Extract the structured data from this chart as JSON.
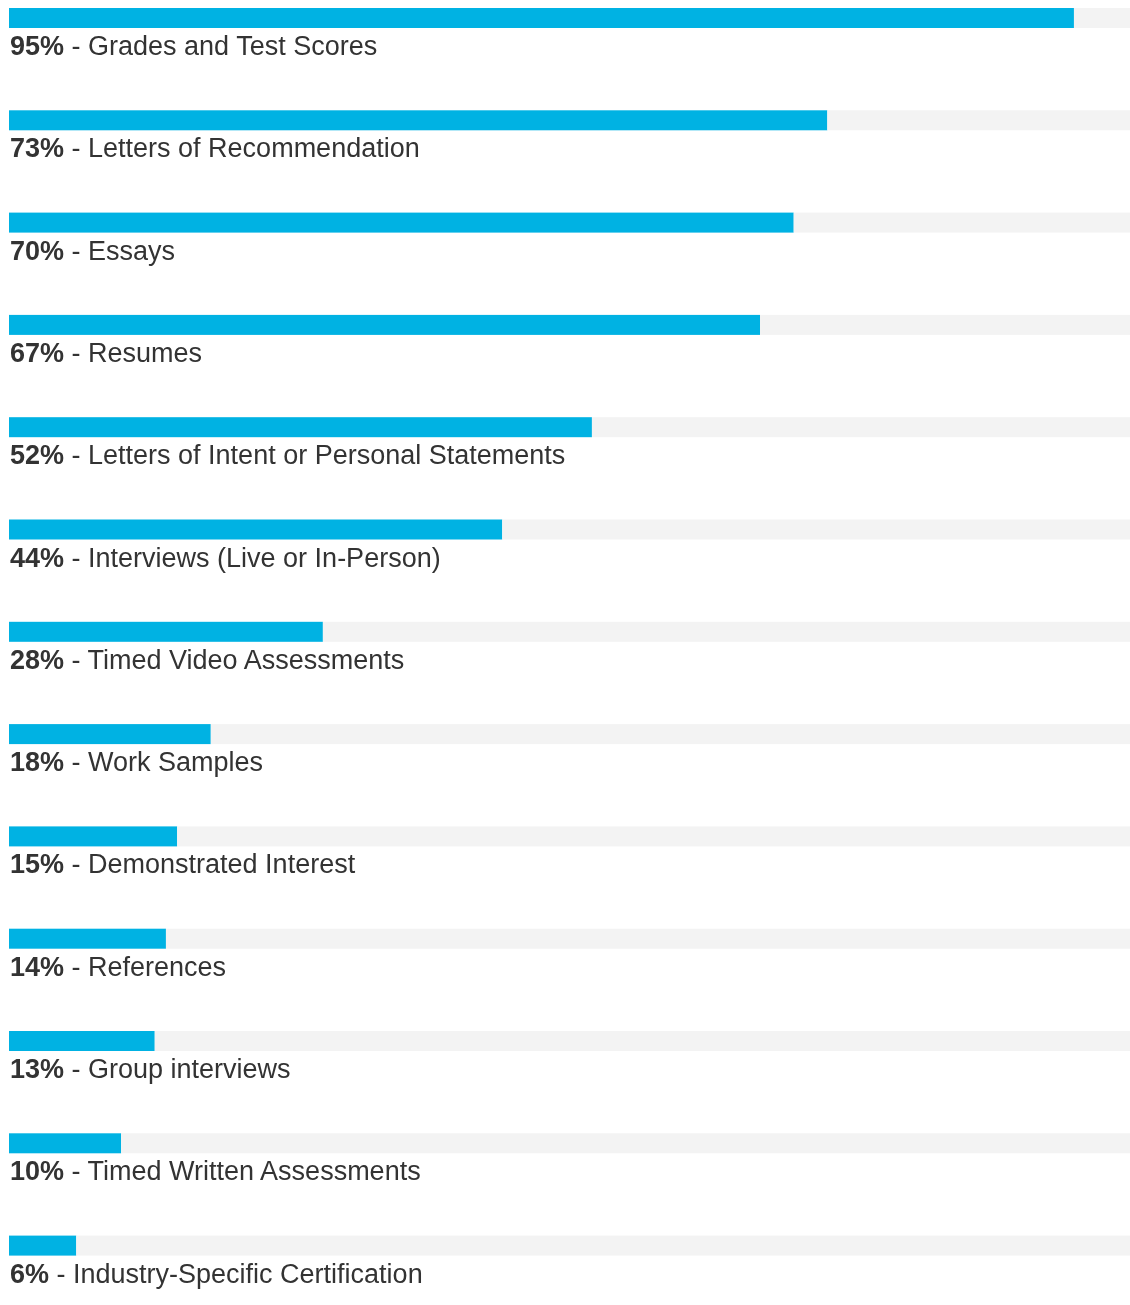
{
  "chart_data": {
    "type": "bar",
    "orientation": "horizontal",
    "stacked": true,
    "categories": [
      "- Grades and Test Scores",
      "- Letters of Recommendation",
      "- Essays",
      "- Resumes",
      "- Letters of Intent or Personal Statements",
      "- Interviews (Live or In-Person)",
      "- Timed Video Assessments",
      "- Work Samples",
      "- Demonstrated Interest",
      "- References",
      "- Group interviews",
      "- Timed Written Assessments",
      "- Industry-Specific Certification"
    ],
    "series": [
      {
        "color": "#00b2e3",
        "values": [
          95,
          73,
          70,
          67,
          52,
          44,
          28,
          18,
          15,
          14,
          13,
          10,
          6
        ],
        "value_labels": [
          "95%",
          "73%",
          "70%",
          "67%",
          "52%",
          "44%",
          "28%",
          "18%",
          "15%",
          "14%",
          "13%",
          "10%",
          "6%"
        ]
      },
      {
        "color": "#f3f3f3",
        "values": [
          5,
          27,
          30,
          33,
          48,
          56,
          72,
          82,
          85,
          86,
          87,
          90,
          94
        ]
      }
    ],
    "xlim": [
      0,
      100
    ]
  }
}
